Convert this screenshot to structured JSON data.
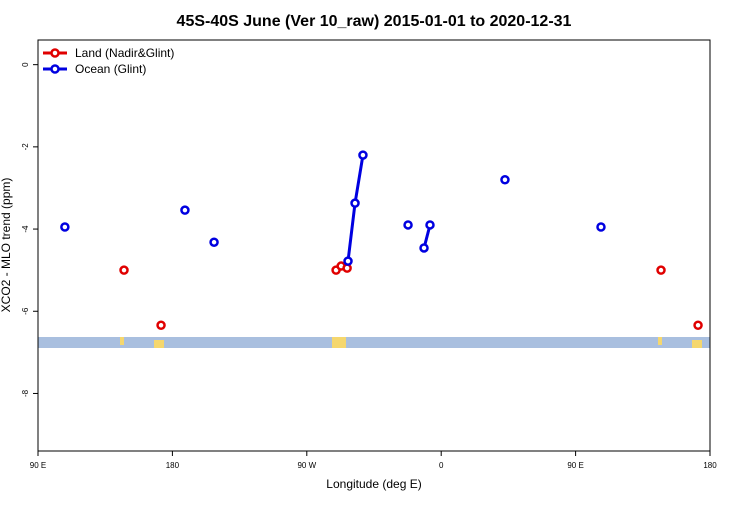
{
  "chart_data": {
    "type": "line",
    "title": "45S-40S June (Ver 10_raw)   2015-01-01 to 2020-12-31",
    "x_label": "Longitude (deg E)",
    "y_label": "XCO2 - MLO trend (ppm)",
    "xlim": [
      90,
      540
    ],
    "xticks": [
      {
        "value": 90,
        "label": "90 E"
      },
      180,
      {
        "value": 270,
        "label": "90 W"
      },
      {
        "value": 360,
        "label": "0"
      },
      {
        "value": 450,
        "label": "90 E"
      },
      {
        "value": 540,
        "label": "180"
      }
    ],
    "ylim": [
      -9.4,
      0.6
    ],
    "yticks": [
      0,
      -2,
      -4,
      -6,
      -8
    ],
    "legend": "top-left",
    "series": [
      {
        "name": "Land (Nadir&Glint)",
        "color": "#e00000",
        "x": [
          147.6,
          null,
          172.4,
          null,
          289.6,
          293,
          297,
          null,
          507.2,
          null,
          532
        ],
        "values": [
          -5.0,
          null,
          -6.34,
          null,
          -5.0,
          -4.9,
          -4.95,
          null,
          -5.0,
          null,
          -6.34
        ]
      },
      {
        "name": "Ocean (Glint)",
        "color": "#0000e0",
        "x": [
          108,
          null,
          188.4,
          null,
          207.9,
          null,
          297.6,
          302.3,
          307.6,
          null,
          337.8,
          null,
          348.5,
          352.5,
          null,
          402.7,
          null,
          467
        ],
        "values": [
          -3.95,
          null,
          -3.54,
          null,
          -4.32,
          null,
          -4.78,
          -3.37,
          -2.2,
          null,
          -3.9,
          null,
          -4.46,
          -3.9,
          null,
          -2.8,
          null,
          -3.95
        ]
      }
    ]
  }
}
